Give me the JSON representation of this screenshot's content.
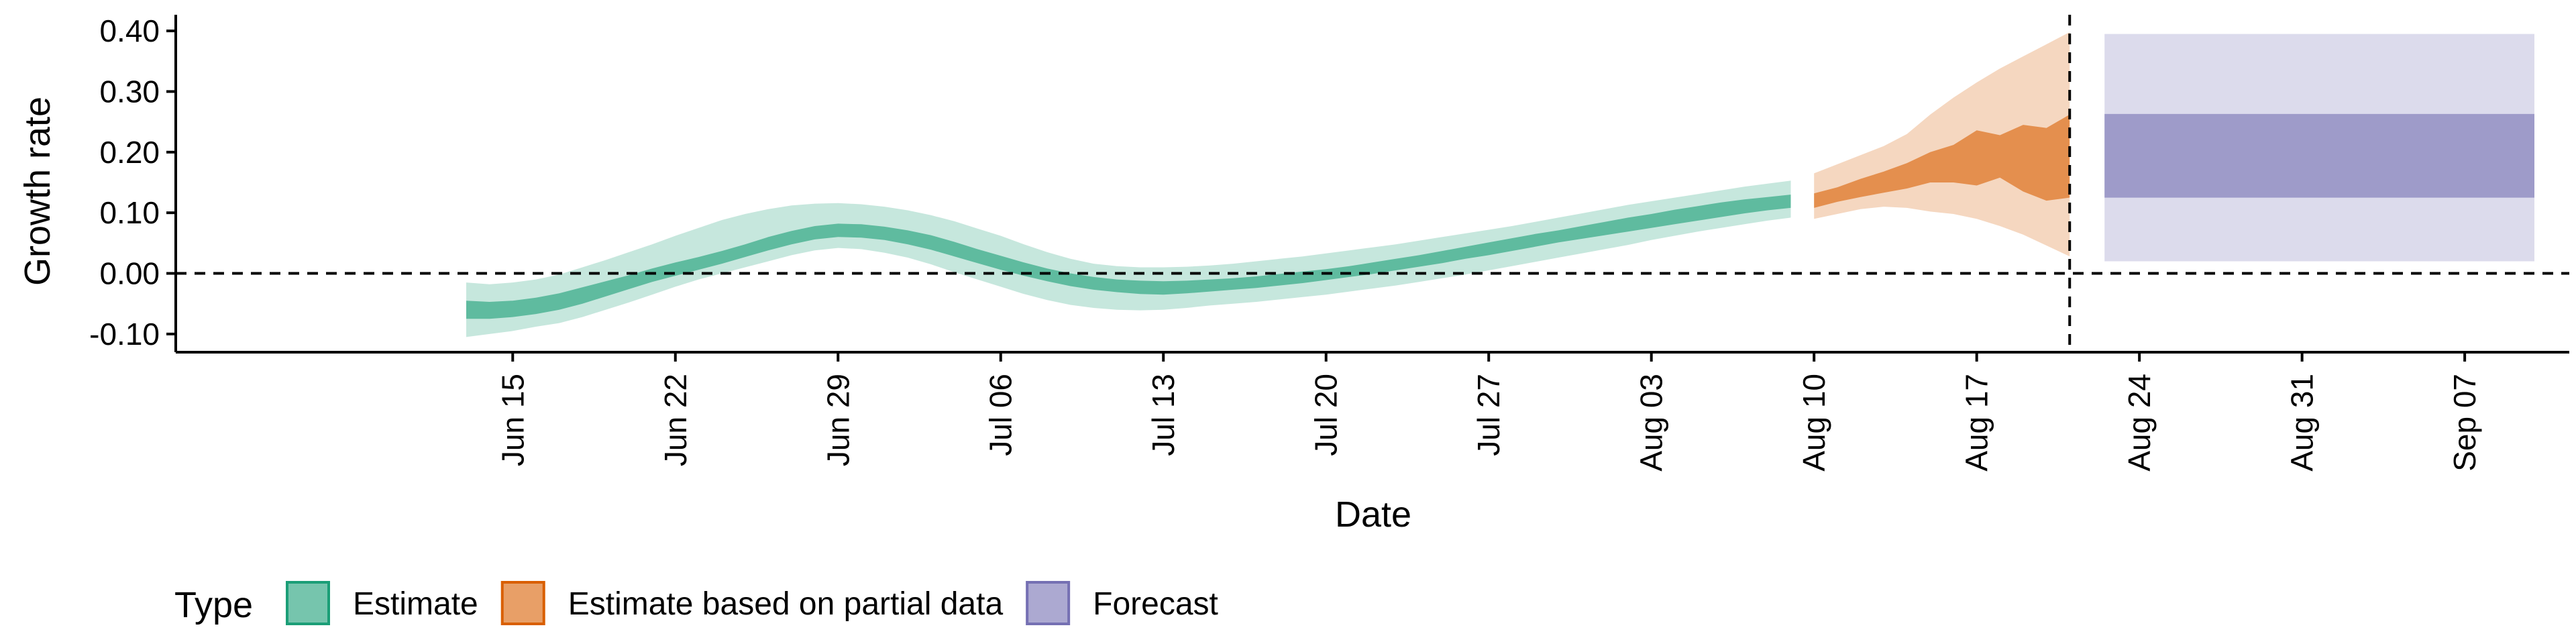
{
  "chart_data": {
    "type": "area",
    "xlabel": "Date",
    "ylabel": "Growth rate",
    "ylim": [
      -0.13,
      0.42
    ],
    "xlim": [
      -14.5,
      88.5
    ],
    "grid": false,
    "legend_position": "bottom-left",
    "y_ticks": [
      {
        "value": 0.4,
        "label": "0.40"
      },
      {
        "value": 0.3,
        "label": "0.30"
      },
      {
        "value": 0.2,
        "label": "0.20"
      },
      {
        "value": 0.1,
        "label": "0.10"
      },
      {
        "value": 0.0,
        "label": "0.00"
      },
      {
        "value": -0.1,
        "label": "-0.10"
      }
    ],
    "x_ticks": [
      {
        "day": 0,
        "label": "Jun 15"
      },
      {
        "day": 7,
        "label": "Jun 22"
      },
      {
        "day": 14,
        "label": "Jun 29"
      },
      {
        "day": 21,
        "label": "Jul 06"
      },
      {
        "day": 28,
        "label": "Jul 13"
      },
      {
        "day": 35,
        "label": "Jul 20"
      },
      {
        "day": 42,
        "label": "Jul 27"
      },
      {
        "day": 49,
        "label": "Aug 03"
      },
      {
        "day": 56,
        "label": "Aug 10"
      },
      {
        "day": 63,
        "label": "Aug 17"
      },
      {
        "day": 70,
        "label": "Aug 24"
      },
      {
        "day": 77,
        "label": "Aug 31"
      },
      {
        "day": 84,
        "label": "Sep 07"
      }
    ],
    "reference_lines": {
      "horizontal_y": 0.0,
      "vertical_day": 67
    },
    "legend_title": "Type",
    "series": [
      {
        "name": "Estimate",
        "color": "#1b9e77",
        "outer_opacity": 0.25,
        "inner_opacity": 0.6,
        "days": [
          -2,
          -1,
          0,
          1,
          2,
          3,
          4,
          5,
          6,
          7,
          8,
          9,
          10,
          11,
          12,
          13,
          14,
          15,
          16,
          17,
          18,
          19,
          20,
          21,
          22,
          23,
          24,
          25,
          26,
          27,
          28,
          29,
          30,
          31,
          32,
          33,
          34,
          35,
          36,
          37,
          38,
          39,
          40,
          41,
          42,
          43,
          44,
          45,
          46,
          47,
          48,
          49,
          50,
          51,
          52,
          53,
          54,
          55
        ],
        "lower90": [
          -0.105,
          -0.1,
          -0.095,
          -0.088,
          -0.082,
          -0.072,
          -0.06,
          -0.048,
          -0.035,
          -0.022,
          -0.01,
          0.0,
          0.01,
          0.02,
          0.03,
          0.038,
          0.042,
          0.04,
          0.034,
          0.026,
          0.015,
          0.002,
          -0.01,
          -0.022,
          -0.034,
          -0.044,
          -0.052,
          -0.057,
          -0.06,
          -0.061,
          -0.06,
          -0.057,
          -0.053,
          -0.05,
          -0.047,
          -0.043,
          -0.039,
          -0.035,
          -0.03,
          -0.025,
          -0.02,
          -0.014,
          -0.008,
          -0.002,
          0.005,
          0.012,
          0.019,
          0.026,
          0.033,
          0.04,
          0.047,
          0.055,
          0.062,
          0.069,
          0.075,
          0.081,
          0.087,
          0.092
        ],
        "lower50": [
          -0.075,
          -0.075,
          -0.072,
          -0.067,
          -0.06,
          -0.05,
          -0.038,
          -0.026,
          -0.014,
          -0.004,
          0.006,
          0.016,
          0.027,
          0.038,
          0.048,
          0.056,
          0.06,
          0.059,
          0.055,
          0.048,
          0.039,
          0.028,
          0.017,
          0.006,
          -0.004,
          -0.013,
          -0.021,
          -0.027,
          -0.031,
          -0.034,
          -0.035,
          -0.033,
          -0.03,
          -0.027,
          -0.024,
          -0.02,
          -0.016,
          -0.011,
          -0.006,
          -0.001,
          0.005,
          0.011,
          0.017,
          0.024,
          0.03,
          0.037,
          0.044,
          0.051,
          0.057,
          0.063,
          0.069,
          0.075,
          0.081,
          0.087,
          0.093,
          0.099,
          0.104,
          0.108
        ],
        "upper50": [
          -0.045,
          -0.047,
          -0.045,
          -0.04,
          -0.033,
          -0.023,
          -0.013,
          -0.003,
          0.008,
          0.018,
          0.027,
          0.037,
          0.048,
          0.06,
          0.07,
          0.078,
          0.082,
          0.081,
          0.077,
          0.071,
          0.063,
          0.052,
          0.04,
          0.029,
          0.018,
          0.008,
          0.0,
          -0.006,
          -0.01,
          -0.012,
          -0.013,
          -0.012,
          -0.01,
          -0.008,
          -0.005,
          -0.001,
          0.003,
          0.007,
          0.012,
          0.018,
          0.024,
          0.03,
          0.037,
          0.044,
          0.051,
          0.058,
          0.065,
          0.071,
          0.078,
          0.085,
          0.092,
          0.098,
          0.105,
          0.111,
          0.117,
          0.122,
          0.126,
          0.13
        ],
        "upper90": [
          -0.015,
          -0.018,
          -0.015,
          -0.01,
          -0.002,
          0.01,
          0.022,
          0.035,
          0.048,
          0.062,
          0.075,
          0.088,
          0.098,
          0.106,
          0.112,
          0.115,
          0.116,
          0.114,
          0.11,
          0.104,
          0.096,
          0.086,
          0.074,
          0.062,
          0.048,
          0.035,
          0.024,
          0.016,
          0.012,
          0.01,
          0.01,
          0.011,
          0.013,
          0.016,
          0.02,
          0.024,
          0.028,
          0.033,
          0.038,
          0.043,
          0.048,
          0.054,
          0.06,
          0.066,
          0.072,
          0.078,
          0.085,
          0.092,
          0.099,
          0.106,
          0.113,
          0.119,
          0.125,
          0.131,
          0.137,
          0.143,
          0.148,
          0.153
        ]
      },
      {
        "name": "Estimate based on partial data",
        "color": "#d95f02",
        "outer_opacity": 0.25,
        "inner_opacity": 0.6,
        "days": [
          56,
          57,
          58,
          59,
          60,
          61,
          62,
          63,
          64,
          65,
          66,
          67
        ],
        "lower90": [
          0.09,
          0.098,
          0.106,
          0.11,
          0.108,
          0.102,
          0.098,
          0.09,
          0.078,
          0.064,
          0.046,
          0.028
        ],
        "lower50": [
          0.108,
          0.118,
          0.126,
          0.133,
          0.14,
          0.15,
          0.15,
          0.145,
          0.158,
          0.135,
          0.12,
          0.125
        ],
        "upper50": [
          0.132,
          0.142,
          0.156,
          0.168,
          0.182,
          0.2,
          0.212,
          0.236,
          0.228,
          0.245,
          0.24,
          0.262
        ],
        "upper90": [
          0.165,
          0.18,
          0.195,
          0.21,
          0.23,
          0.262,
          0.29,
          0.315,
          0.338,
          0.358,
          0.378,
          0.398
        ]
      },
      {
        "name": "Forecast",
        "color": "#7570b3",
        "outer_opacity": 0.25,
        "inner_opacity": 0.6,
        "days": [
          68.5,
          87
        ],
        "lower90": [
          0.02,
          0.02
        ],
        "lower50": [
          0.125,
          0.125
        ],
        "upper50": [
          0.263,
          0.263
        ],
        "upper90": [
          0.395,
          0.395
        ]
      }
    ]
  }
}
